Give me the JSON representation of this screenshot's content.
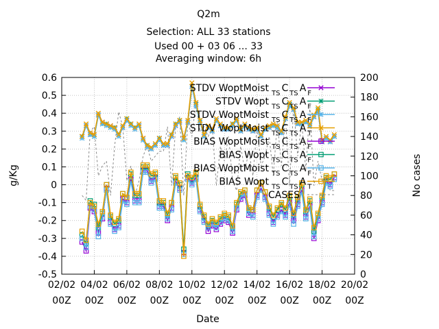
{
  "chart_data": {
    "type": "line",
    "title": [
      "Q2m",
      "Selection: ALL     33 stations",
      "Used  00 + 03 06 ... 33",
      "Averaging window:  6h"
    ],
    "xlabel": "Date",
    "ylabel": "g/Kg",
    "y2label": "No cases",
    "ylim": [
      -0.5,
      0.6
    ],
    "y2lim": [
      0,
      200
    ],
    "yticks": [
      "-0.5",
      "-0.4",
      "-0.3",
      "-0.2",
      "-0.1",
      "0",
      "0.1",
      "0.2",
      "0.3",
      "0.4",
      "0.5",
      "0.6"
    ],
    "y2ticks": [
      "0",
      "20",
      "40",
      "60",
      "80",
      "100",
      "120",
      "140",
      "160",
      "180",
      "200"
    ],
    "xticks": [
      [
        "02/02",
        "00Z"
      ],
      [
        "04/02",
        "00Z"
      ],
      [
        "06/02",
        "00Z"
      ],
      [
        "08/02",
        "00Z"
      ],
      [
        "10/02",
        "00Z"
      ],
      [
        "12/02",
        "00Z"
      ],
      [
        "14/02",
        "00Z"
      ],
      [
        "16/02",
        "00Z"
      ],
      [
        "18/02",
        "00Z"
      ],
      [
        "20/02",
        "00Z"
      ]
    ],
    "xlim": [
      0,
      18
    ],
    "grid": true,
    "legend_position": "top-right",
    "x": [
      1.25,
      1.5,
      1.75,
      2.0,
      2.25,
      2.5,
      2.75,
      3.0,
      3.25,
      3.5,
      3.75,
      4.0,
      4.25,
      4.5,
      4.75,
      5.0,
      5.25,
      5.5,
      5.75,
      6.0,
      6.25,
      6.5,
      6.75,
      7.0,
      7.25,
      7.5,
      7.75,
      8.0,
      8.25,
      8.5,
      8.75,
      9.0,
      9.25,
      9.5,
      9.75,
      10.0,
      10.25,
      10.5,
      10.75,
      11.0,
      11.25,
      11.5,
      11.75,
      12.0,
      12.25,
      12.5,
      12.75,
      13.0,
      13.25,
      13.5,
      13.75,
      14.0,
      14.25,
      14.5,
      14.75,
      15.0,
      15.25,
      15.5,
      15.75,
      16.0,
      16.25,
      16.5,
      16.75
    ],
    "series": [
      {
        "name": "STDV WoptMoist",
        "subscripts": [
          "TS",
          "C",
          "TS",
          "A",
          "F"
        ],
        "axis": "y",
        "color": "#9400d3",
        "marker": "x",
        "values": [
          0.27,
          0.33,
          0.28,
          0.28,
          0.39,
          0.35,
          0.34,
          0.33,
          0.32,
          0.28,
          0.32,
          0.36,
          0.34,
          0.32,
          0.33,
          0.26,
          0.22,
          0.2,
          0.22,
          0.26,
          0.22,
          0.22,
          0.27,
          0.33,
          0.35,
          0.26,
          0.35,
          0.55,
          0.45,
          0.36,
          0.27,
          0.32,
          0.3,
          0.36,
          0.33,
          0.31,
          0.31,
          0.34,
          0.36,
          0.3,
          0.33,
          0.31,
          0.3,
          0.31,
          0.27,
          0.31,
          0.32,
          0.33,
          0.32,
          0.29,
          0.37,
          0.45,
          0.42,
          0.34,
          0.34,
          0.35,
          0.33,
          0.38,
          0.41,
          0.24,
          0.26,
          0.24,
          0.27
        ]
      },
      {
        "name": "STDV Wopt",
        "subscripts": [
          "TS",
          "C",
          "TS",
          "A",
          "F"
        ],
        "axis": "y",
        "color": "#009e73",
        "marker": "*",
        "values": [
          0.27,
          0.33,
          0.28,
          0.27,
          0.39,
          0.34,
          0.34,
          0.32,
          0.32,
          0.28,
          0.32,
          0.37,
          0.34,
          0.32,
          0.33,
          0.25,
          0.22,
          0.2,
          0.22,
          0.26,
          0.22,
          0.22,
          0.28,
          0.34,
          0.36,
          0.25,
          0.35,
          0.55,
          0.45,
          0.36,
          0.27,
          0.32,
          0.3,
          0.36,
          0.33,
          0.31,
          0.31,
          0.34,
          0.36,
          0.3,
          0.33,
          0.31,
          0.3,
          0.31,
          0.27,
          0.31,
          0.32,
          0.33,
          0.32,
          0.29,
          0.37,
          0.45,
          0.42,
          0.34,
          0.34,
          0.35,
          0.33,
          0.38,
          0.42,
          0.24,
          0.26,
          0.24,
          0.27
        ]
      },
      {
        "name": "STDV WoptMoist",
        "subscripts": [
          "TS",
          "C",
          "TS",
          "A",
          "F"
        ],
        "axis": "y",
        "color": "#56b4e9",
        "marker": "*",
        "values": [
          0.26,
          0.33,
          0.28,
          0.27,
          0.39,
          0.34,
          0.33,
          0.32,
          0.31,
          0.27,
          0.32,
          0.36,
          0.33,
          0.31,
          0.33,
          0.25,
          0.21,
          0.2,
          0.22,
          0.25,
          0.22,
          0.22,
          0.27,
          0.33,
          0.35,
          0.25,
          0.35,
          0.55,
          0.44,
          0.35,
          0.27,
          0.32,
          0.3,
          0.36,
          0.33,
          0.31,
          0.31,
          0.33,
          0.36,
          0.3,
          0.33,
          0.31,
          0.3,
          0.31,
          0.27,
          0.31,
          0.32,
          0.33,
          0.32,
          0.29,
          0.37,
          0.44,
          0.42,
          0.34,
          0.34,
          0.35,
          0.33,
          0.38,
          0.41,
          0.24,
          0.26,
          0.24,
          0.27
        ]
      },
      {
        "name": "STDV WoptMoist",
        "subscripts": [
          "TS",
          "C",
          "TS",
          "A",
          "T"
        ],
        "axis": "y",
        "color": "#e69f00",
        "marker": "x",
        "values": [
          0.27,
          0.34,
          0.29,
          0.28,
          0.4,
          0.35,
          0.34,
          0.33,
          0.32,
          0.28,
          0.33,
          0.37,
          0.34,
          0.32,
          0.34,
          0.26,
          0.22,
          0.21,
          0.23,
          0.26,
          0.23,
          0.23,
          0.28,
          0.34,
          0.36,
          0.26,
          0.36,
          0.57,
          0.46,
          0.36,
          0.28,
          0.33,
          0.31,
          0.37,
          0.34,
          0.32,
          0.32,
          0.34,
          0.37,
          0.31,
          0.34,
          0.32,
          0.31,
          0.32,
          0.28,
          0.32,
          0.33,
          0.34,
          0.33,
          0.3,
          0.38,
          0.46,
          0.43,
          0.35,
          0.35,
          0.36,
          0.34,
          0.39,
          0.43,
          0.25,
          0.27,
          0.25,
          0.28
        ]
      },
      {
        "name": "BIAS WoptMoist",
        "subscripts": [
          "TS",
          "C",
          "TS",
          "A",
          "F"
        ],
        "axis": "y",
        "color": "#9400d3",
        "marker": "square",
        "values": [
          -0.32,
          -0.37,
          -0.13,
          -0.15,
          -0.27,
          -0.19,
          -0.02,
          -0.21,
          -0.25,
          -0.23,
          -0.08,
          -0.1,
          0.03,
          -0.09,
          -0.09,
          0.08,
          0.08,
          0.02,
          0.04,
          -0.12,
          -0.12,
          -0.2,
          -0.13,
          0.02,
          -0.02,
          -0.38,
          0.04,
          0.01,
          0.04,
          -0.14,
          -0.2,
          -0.26,
          -0.23,
          -0.25,
          -0.22,
          -0.2,
          -0.21,
          -0.27,
          -0.14,
          -0.08,
          -0.06,
          -0.17,
          -0.17,
          -0.06,
          -0.02,
          -0.07,
          -0.16,
          -0.21,
          -0.17,
          -0.14,
          -0.17,
          -0.1,
          -0.2,
          -0.11,
          -0.03,
          -0.18,
          -0.12,
          -0.3,
          -0.2,
          -0.1,
          0.02,
          0.0,
          0.04
        ]
      },
      {
        "name": "BIAS Wopt",
        "subscripts": [
          "TS",
          "C",
          "TS",
          "A",
          "F"
        ],
        "axis": "y",
        "color": "#009e73",
        "marker": "square",
        "values": [
          -0.28,
          -0.33,
          -0.09,
          -0.11,
          -0.24,
          -0.16,
          0.0,
          -0.18,
          -0.22,
          -0.2,
          -0.05,
          -0.07,
          0.06,
          -0.06,
          -0.06,
          0.1,
          0.1,
          0.05,
          0.06,
          -0.1,
          -0.1,
          -0.17,
          -0.1,
          0.04,
          0.0,
          -0.36,
          0.06,
          0.03,
          0.06,
          -0.12,
          -0.18,
          -0.23,
          -0.2,
          -0.22,
          -0.19,
          -0.17,
          -0.18,
          -0.24,
          -0.11,
          -0.05,
          -0.03,
          -0.14,
          -0.14,
          -0.03,
          0.01,
          -0.04,
          -0.13,
          -0.18,
          -0.14,
          -0.11,
          -0.14,
          -0.07,
          -0.17,
          -0.08,
          0.0,
          -0.15,
          -0.09,
          -0.26,
          -0.17,
          -0.07,
          0.04,
          0.03,
          0.06
        ]
      },
      {
        "name": "BIAS WoptMoist",
        "subscripts": [
          "TS",
          "C",
          "TS",
          "A",
          "F"
        ],
        "axis": "y",
        "color": "#56b4e9",
        "marker": "square",
        "values": [
          -0.3,
          -0.35,
          -0.12,
          -0.14,
          -0.29,
          -0.18,
          -0.03,
          -0.22,
          -0.26,
          -0.24,
          -0.09,
          -0.11,
          0.02,
          -0.1,
          -0.1,
          0.07,
          0.07,
          0.01,
          0.03,
          -0.13,
          -0.13,
          -0.19,
          -0.14,
          0.01,
          -0.03,
          -0.39,
          0.03,
          0.0,
          0.03,
          -0.15,
          -0.21,
          -0.24,
          -0.22,
          -0.24,
          -0.21,
          -0.19,
          -0.2,
          -0.26,
          -0.13,
          -0.07,
          -0.05,
          -0.16,
          -0.18,
          -0.07,
          -0.03,
          -0.08,
          -0.17,
          -0.22,
          -0.18,
          -0.15,
          -0.18,
          -0.11,
          -0.22,
          -0.12,
          -0.04,
          -0.19,
          -0.13,
          -0.29,
          -0.19,
          -0.11,
          0.01,
          -0.01,
          0.03
        ]
      },
      {
        "name": "BIAS Wopt",
        "subscripts": [
          "TS",
          "C",
          "TS",
          "A",
          "T"
        ],
        "axis": "y",
        "color": "#e69f00",
        "marker": "square",
        "values": [
          -0.26,
          -0.31,
          -0.1,
          -0.12,
          -0.22,
          -0.15,
          0.0,
          -0.17,
          -0.21,
          -0.19,
          -0.05,
          -0.07,
          0.07,
          -0.05,
          -0.05,
          0.11,
          0.11,
          0.06,
          0.07,
          -0.09,
          -0.09,
          -0.16,
          -0.1,
          0.05,
          0.01,
          -0.4,
          0.05,
          0.04,
          0.07,
          -0.11,
          -0.17,
          -0.22,
          -0.19,
          -0.21,
          -0.18,
          -0.16,
          -0.17,
          -0.23,
          -0.1,
          -0.04,
          -0.03,
          -0.13,
          -0.14,
          -0.03,
          0.01,
          -0.04,
          -0.12,
          -0.17,
          -0.13,
          -0.1,
          -0.13,
          -0.06,
          -0.16,
          -0.07,
          0.01,
          -0.14,
          -0.08,
          -0.24,
          -0.16,
          -0.06,
          0.05,
          0.04,
          0.06
        ]
      },
      {
        "name": "CASES",
        "axis": "y2",
        "color": "#888888",
        "marker": "none",
        "dash": true,
        "values": [
          80,
          75,
          145,
          150,
          100,
          110,
          115,
          80,
          130,
          165,
          150,
          95,
          110,
          80,
          95,
          120,
          130,
          115,
          120,
          125,
          125,
          150,
          90,
          150,
          160,
          80,
          155,
          140,
          175,
          145,
          150,
          140,
          150,
          90,
          130,
          115,
          140,
          95,
          85,
          130,
          105,
          125,
          100,
          150,
          110,
          120,
          140,
          100,
          155,
          110,
          160,
          90,
          170,
          120,
          155,
          105,
          170,
          90,
          115,
          95,
          100,
          85,
          85
        ]
      }
    ]
  }
}
